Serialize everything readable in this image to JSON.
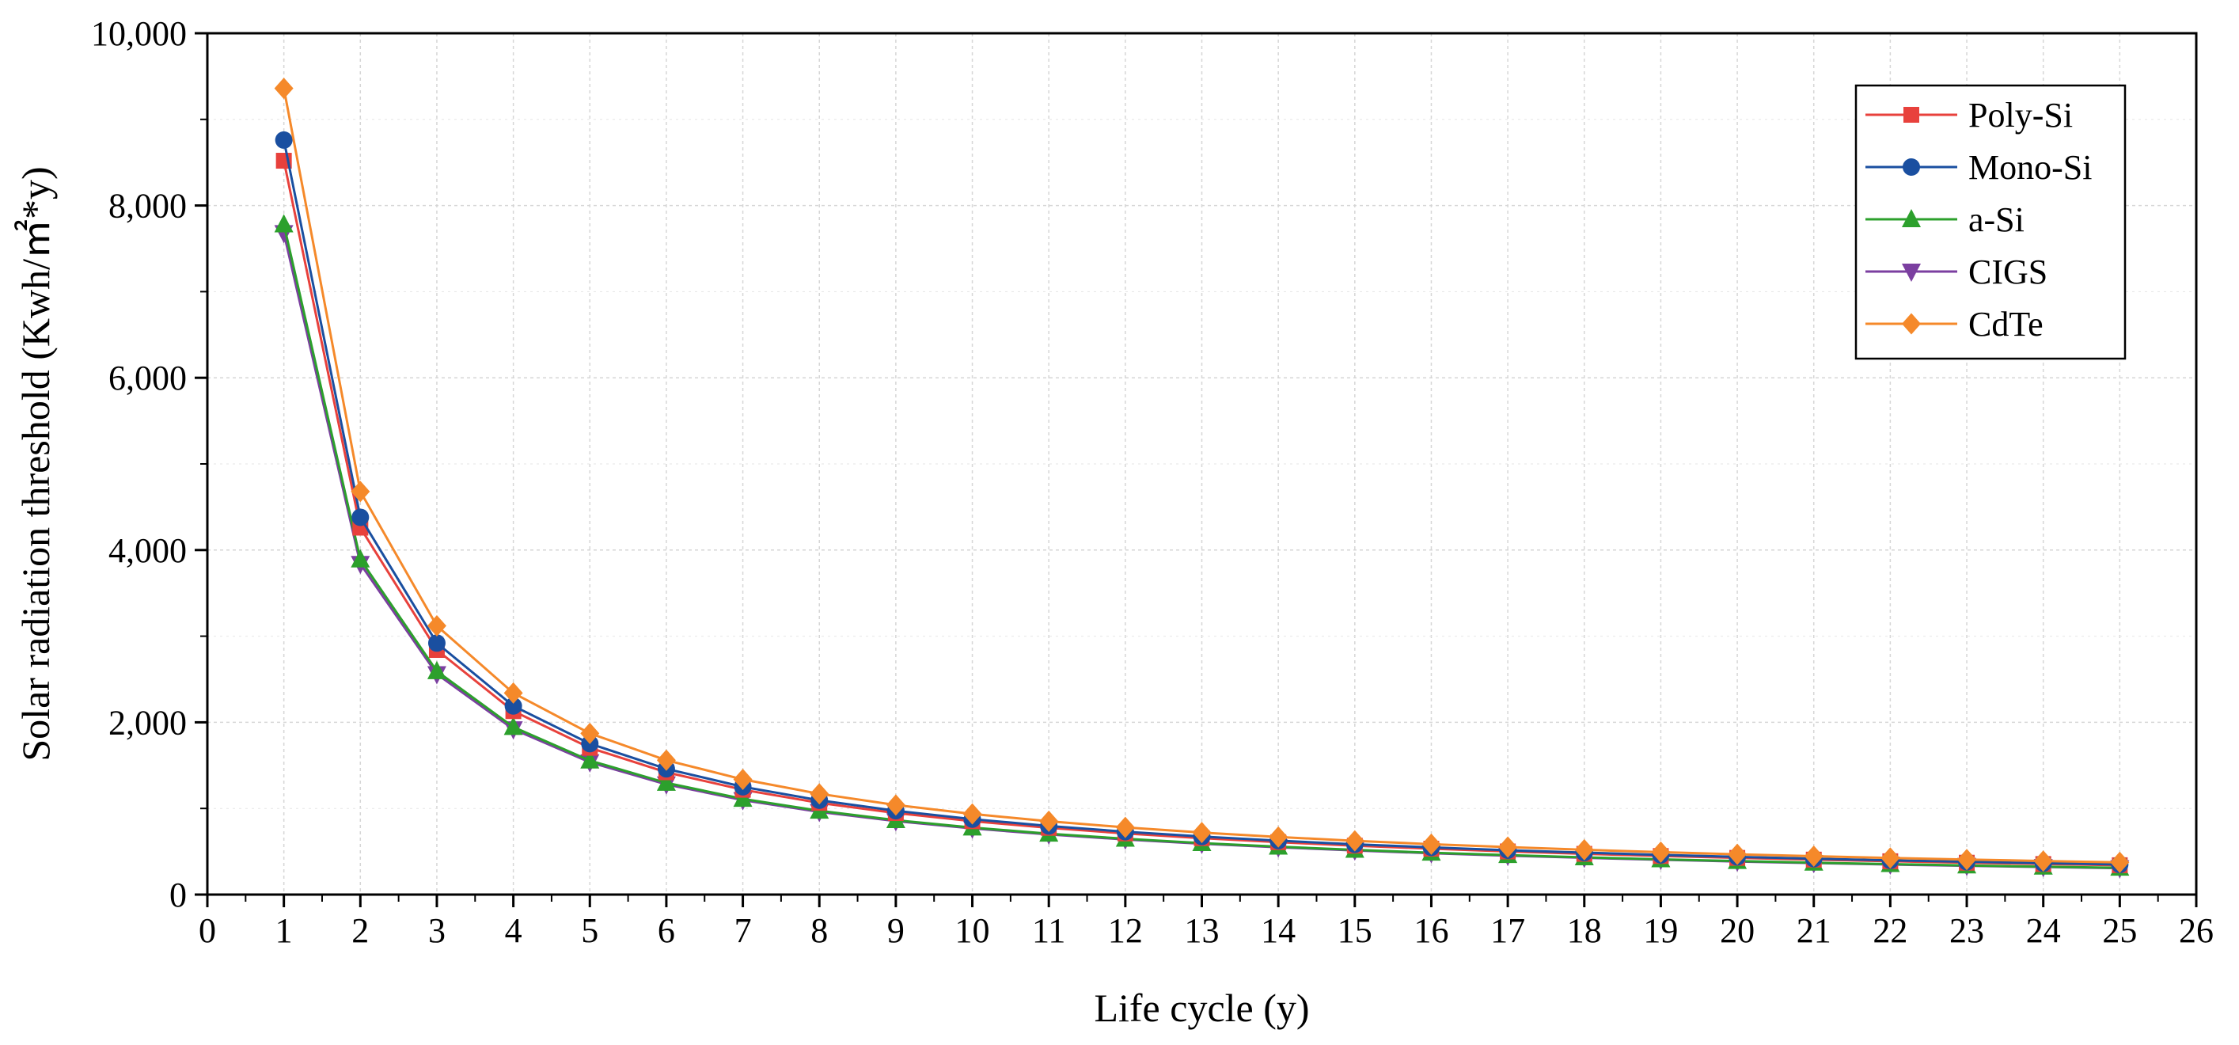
{
  "chart_data": {
    "type": "line",
    "title": "",
    "xlabel": "Life cycle (y)",
    "ylabel": "Solar radiation threshold (Kwh/㎡*y)",
    "xlim": [
      0,
      26
    ],
    "ylim": [
      0,
      10000
    ],
    "x_ticks": [
      "0",
      "1",
      "2",
      "3",
      "4",
      "5",
      "6",
      "7",
      "8",
      "9",
      "10",
      "11",
      "12",
      "13",
      "14",
      "15",
      "16",
      "17",
      "18",
      "19",
      "20",
      "21",
      "22",
      "23",
      "24",
      "25",
      "26"
    ],
    "y_ticks": [
      "0",
      "2,000",
      "4,000",
      "6,000",
      "8,000",
      "10,000"
    ],
    "grid": true,
    "legend_position": "top-right",
    "x": [
      1,
      2,
      3,
      4,
      5,
      6,
      7,
      8,
      9,
      10,
      11,
      12,
      13,
      14,
      15,
      16,
      17,
      18,
      19,
      20,
      21,
      22,
      23,
      24,
      25
    ],
    "series": [
      {
        "name": "Poly-Si",
        "color": "#e8413c",
        "marker": "square",
        "values": [
          8520,
          4260,
          2840,
          2130,
          1704,
          1420,
          1217,
          1065,
          947,
          852,
          775,
          710,
          655,
          609,
          568,
          533,
          501,
          473,
          448,
          426,
          406,
          387,
          370,
          355,
          341
        ]
      },
      {
        "name": "Mono-Si",
        "color": "#1a4fa0",
        "marker": "circle",
        "values": [
          8760,
          4380,
          2920,
          2190,
          1752,
          1460,
          1251,
          1095,
          973,
          876,
          796,
          730,
          674,
          626,
          584,
          548,
          515,
          487,
          461,
          438,
          417,
          398,
          381,
          365,
          350
        ]
      },
      {
        "name": "a-Si",
        "color": "#2ca02c",
        "marker": "triangle-up",
        "values": [
          7780,
          3890,
          2593,
          1945,
          1556,
          1297,
          1111,
          973,
          864,
          778,
          707,
          648,
          598,
          556,
          519,
          486,
          458,
          432,
          409,
          389,
          370,
          354,
          338,
          324,
          311
        ]
      },
      {
        "name": "CIGS",
        "color": "#7b3fa0",
        "marker": "triangle-down",
        "values": [
          7680,
          3840,
          2560,
          1920,
          1536,
          1280,
          1097,
          960,
          853,
          768,
          698,
          640,
          591,
          549,
          512,
          480,
          452,
          427,
          404,
          384,
          366,
          349,
          334,
          320,
          307
        ]
      },
      {
        "name": "CdTe",
        "color": "#f5892a",
        "marker": "diamond",
        "values": [
          9360,
          4680,
          3120,
          2340,
          1872,
          1560,
          1337,
          1170,
          1040,
          936,
          851,
          780,
          720,
          669,
          624,
          585,
          551,
          520,
          493,
          468,
          446,
          425,
          407,
          390,
          374
        ]
      }
    ]
  }
}
